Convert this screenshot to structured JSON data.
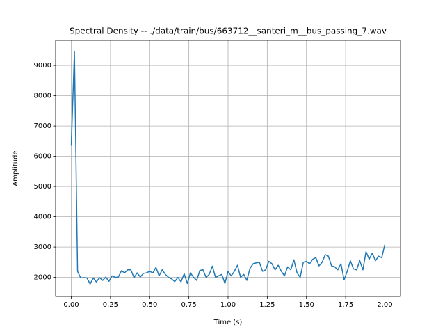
{
  "chart_data": {
    "type": "line",
    "title": "Spectral Density -- ./data/train/bus/663712__santeri_m__bus_passing_7.wav",
    "xlabel": "Time (s)",
    "ylabel": "Amplitude",
    "color": "#1f77b4",
    "grid": true,
    "xlim": [
      -0.1,
      2.1
    ],
    "ylim": [
      1370,
      9830
    ],
    "xticks": [
      {
        "value": 0,
        "label": "0.00"
      },
      {
        "value": 0.25,
        "label": "0.25"
      },
      {
        "value": 0.5,
        "label": "0.50"
      },
      {
        "value": 0.75,
        "label": "0.75"
      },
      {
        "value": 1,
        "label": "1.00"
      },
      {
        "value": 1.25,
        "label": "1.25"
      },
      {
        "value": 1.5,
        "label": "1.50"
      },
      {
        "value": 1.75,
        "label": "1.75"
      },
      {
        "value": 2,
        "label": "2.00"
      }
    ],
    "yticks": [
      2000,
      3000,
      4000,
      5000,
      6000,
      7000,
      8000,
      9000
    ],
    "x": [
      0,
      0.02,
      0.04,
      0.06,
      0.08,
      0.1,
      0.12,
      0.14,
      0.16,
      0.18,
      0.2,
      0.22,
      0.24,
      0.26,
      0.28,
      0.3,
      0.32,
      0.34,
      0.36,
      0.38,
      0.4,
      0.42,
      0.44,
      0.46,
      0.48,
      0.5,
      0.52,
      0.54,
      0.56,
      0.58,
      0.6,
      0.62,
      0.64,
      0.66,
      0.68,
      0.7,
      0.72,
      0.74,
      0.76,
      0.78,
      0.8,
      0.82,
      0.84,
      0.86,
      0.88,
      0.9,
      0.92,
      0.94,
      0.96,
      0.98,
      1,
      1.02,
      1.04,
      1.06,
      1.08,
      1.1,
      1.12,
      1.14,
      1.16,
      1.18,
      1.2,
      1.22,
      1.24,
      1.26,
      1.28,
      1.3,
      1.32,
      1.34,
      1.36,
      1.38,
      1.4,
      1.42,
      1.44,
      1.46,
      1.48,
      1.5,
      1.52,
      1.54,
      1.56,
      1.58,
      1.6,
      1.62,
      1.64,
      1.66,
      1.68,
      1.7,
      1.72,
      1.74,
      1.76,
      1.78,
      1.8,
      1.82,
      1.84,
      1.86,
      1.88,
      1.9,
      1.92,
      1.94,
      1.96,
      1.98,
      2
    ],
    "values": [
      6350,
      9450,
      2200,
      1980,
      1990,
      1980,
      1780,
      1980,
      1850,
      1990,
      1900,
      2010,
      1870,
      2050,
      2000,
      2010,
      2220,
      2150,
      2250,
      2250,
      1990,
      2150,
      2010,
      2130,
      2150,
      2200,
      2150,
      2330,
      2050,
      2250,
      2100,
      2000,
      1950,
      1860,
      2000,
      1850,
      2120,
      1800,
      2150,
      2000,
      1900,
      2230,
      2250,
      2000,
      2100,
      2370,
      2000,
      2050,
      2100,
      1800,
      2200,
      2050,
      2200,
      2400,
      2000,
      2100,
      1900,
      2300,
      2450,
      2480,
      2500,
      2200,
      2250,
      2530,
      2450,
      2250,
      2400,
      2200,
      2050,
      2350,
      2250,
      2580,
      2150,
      2000,
      2500,
      2530,
      2450,
      2600,
      2650,
      2380,
      2500,
      2750,
      2700,
      2380,
      2350,
      2250,
      2450,
      1920,
      2200,
      2550,
      2280,
      2250,
      2550,
      2250,
      2850,
      2600,
      2800,
      2550,
      2700,
      2650,
      3080
    ]
  }
}
